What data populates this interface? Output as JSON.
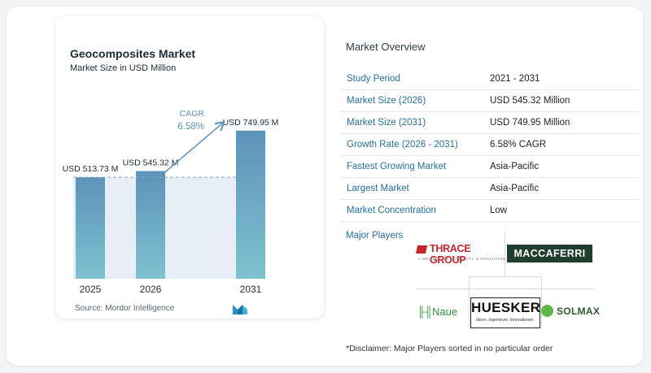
{
  "chart": {
    "title": "Geocomposites Market",
    "subtitle": "Market Size in USD Million",
    "source": "Source:  Mordor Intelligence",
    "cagr_label": "CAGR",
    "cagr_value": "6.58%"
  },
  "chart_data": {
    "type": "bar",
    "categories": [
      "2025",
      "2026",
      "2031"
    ],
    "values": [
      513.73,
      545.32,
      749.95
    ],
    "value_labels": [
      "USD 513.73 M",
      "USD 545.32 M",
      "USD 749.95 M"
    ],
    "title": "Geocomposites Market",
    "subtitle": "Market Size in USD Million",
    "xlabel": "",
    "ylabel": "",
    "annotation": "CAGR 6.58%",
    "bar_color": "#5c93ba",
    "grid": false
  },
  "overview": {
    "title": "Market Overview",
    "rows": [
      {
        "key": "Study Period",
        "value": "2021 - 2031"
      },
      {
        "key": "Market Size (2026)",
        "value": "USD 545.32 Million"
      },
      {
        "key": "Market Size (2031)",
        "value": "USD 749.95 Million"
      },
      {
        "key": "Growth Rate (2026 - 2031)",
        "value": "6.58% CAGR"
      },
      {
        "key": "Fastest Growing Market",
        "value": "Asia-Pacific"
      },
      {
        "key": "Largest Market",
        "value": "Asia-Pacific"
      },
      {
        "key": "Market Concentration",
        "value": "Low"
      }
    ]
  },
  "players": {
    "title": "Major Players",
    "thrace": {
      "name": "THRACE GROUP",
      "tagline": "A MEMBER OF INTEGRITY & EVOLUTION"
    },
    "maccaferri": "MACCAFERRI",
    "huesker": {
      "name": "HUESKER",
      "tagline": "Ideen. Ingenieure. Innovationen."
    },
    "naue": "Naue",
    "solmax": "SOLMAX"
  },
  "disclaimer": "*Disclaimer: Major Players sorted in no particular order"
}
